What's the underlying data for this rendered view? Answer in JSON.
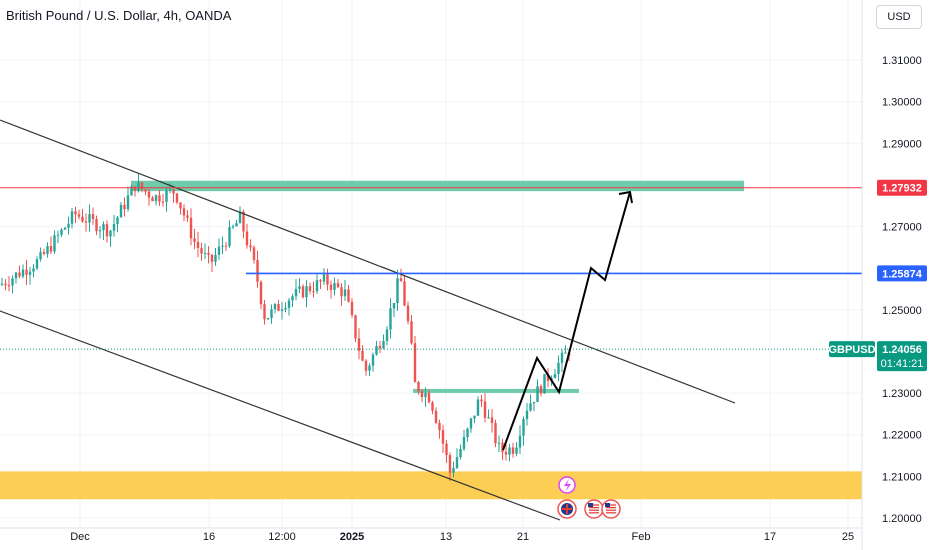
{
  "header": {
    "symbol_title": "British Pound / U.S. Dollar, 4h, OANDA",
    "currency": "USD"
  },
  "colors": {
    "up_candle": "#26a69a",
    "down_candle": "#ef5350",
    "zone_green": "#5ec6a4",
    "zone_yellow": "#fcc940",
    "resistance_red": "#f23645",
    "level_blue": "#2962ff",
    "current_price": "#089981",
    "channel_line": "#333333",
    "projection": "#000000"
  },
  "chart_data": {
    "type": "candlestick",
    "title": "British Pound / U.S. Dollar, 4h, OANDA",
    "symbol": "GBPUSD",
    "ylim": [
      1.2,
      1.32
    ],
    "y_ticks": [
      "1.31000",
      "1.30000",
      "1.29000",
      "1.27000",
      "1.25000",
      "1.23000",
      "1.22000",
      "1.21000",
      "1.20000"
    ],
    "x_ticks": [
      {
        "label": "Dec",
        "bold": false
      },
      {
        "label": "16",
        "bold": false
      },
      {
        "label": "12:00",
        "bold": false
      },
      {
        "label": "2025",
        "bold": true
      },
      {
        "label": "13",
        "bold": false
      },
      {
        "label": "21",
        "bold": false
      },
      {
        "label": "Feb",
        "bold": false
      },
      {
        "label": "17",
        "bold": false
      },
      {
        "label": "25",
        "bold": false
      }
    ],
    "levels": [
      {
        "name": "resistance",
        "price": 1.27932,
        "label": "1.27932",
        "color": "#f23645"
      },
      {
        "name": "key-level",
        "price": 1.25874,
        "label": "1.25874",
        "color": "#2962ff"
      },
      {
        "name": "current-price",
        "price": 1.24056,
        "label": "1.24056",
        "color": "#089981",
        "symbol": "GBPUSD",
        "countdown": "01:41:21"
      }
    ],
    "zones": [
      {
        "name": "supply-zone",
        "top": 1.281,
        "bottom": 1.2785,
        "color": "#5ec6a4"
      },
      {
        "name": "breakout-zone",
        "top": 1.231,
        "bottom": 1.2303,
        "color": "#5ec6a4"
      },
      {
        "name": "demand-zone",
        "top": 1.2112,
        "bottom": 1.2045,
        "color": "#fcc940"
      }
    ],
    "grid": true
  }
}
